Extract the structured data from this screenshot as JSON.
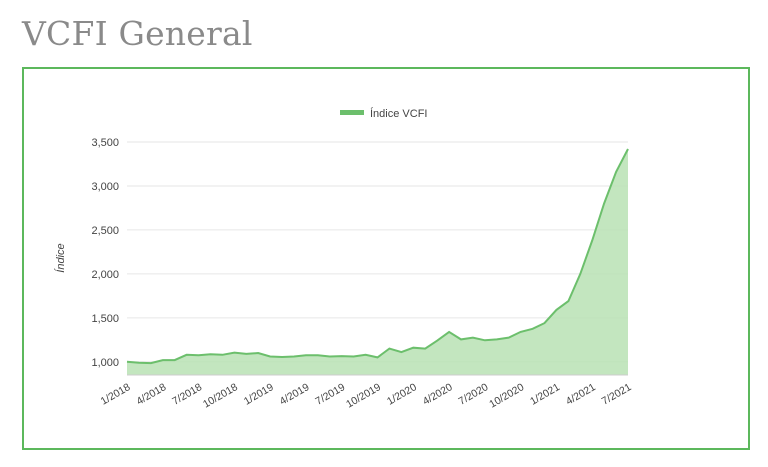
{
  "page": {
    "title": "VCFI General"
  },
  "colors": {
    "frame": "#5cb85c",
    "line": "#6cbf6c",
    "fill": "#b9e2b4",
    "grid": "#e6e6e6",
    "text": "#444444",
    "title": "#8a8a8a"
  },
  "chart_data": {
    "type": "area",
    "title": "",
    "xlabel": "",
    "ylabel": "Índice",
    "legend": {
      "position": "top",
      "entries": [
        "Índice VCFI"
      ]
    },
    "grid": true,
    "ylim": [
      850,
      3500
    ],
    "yticks": [
      1000,
      1500,
      2000,
      2500,
      3000,
      3500
    ],
    "ytick_labels": [
      "1,000",
      "1,500",
      "2,000",
      "2,500",
      "3,000",
      "3,500"
    ],
    "x_tick_labels": [
      "1/2018",
      "4/2018",
      "7/2018",
      "10/2018",
      "1/2019",
      "4/2019",
      "7/2019",
      "10/2019",
      "1/2020",
      "4/2020",
      "7/2020",
      "10/2020",
      "1/2021",
      "4/2021",
      "7/2021"
    ],
    "x_tick_positions": [
      0,
      3,
      6,
      9,
      12,
      15,
      18,
      21,
      24,
      27,
      30,
      33,
      36,
      39,
      42
    ],
    "series": [
      {
        "name": "Índice VCFI",
        "values": [
          1000,
          990,
          985,
          1020,
          1020,
          1080,
          1075,
          1085,
          1080,
          1105,
          1090,
          1100,
          1060,
          1055,
          1060,
          1075,
          1075,
          1060,
          1065,
          1060,
          1080,
          1050,
          1150,
          1110,
          1160,
          1150,
          1240,
          1340,
          1255,
          1275,
          1245,
          1255,
          1275,
          1340,
          1375,
          1440,
          1590,
          1690,
          2000,
          2380,
          2800,
          3160,
          3420
        ]
      }
    ]
  }
}
